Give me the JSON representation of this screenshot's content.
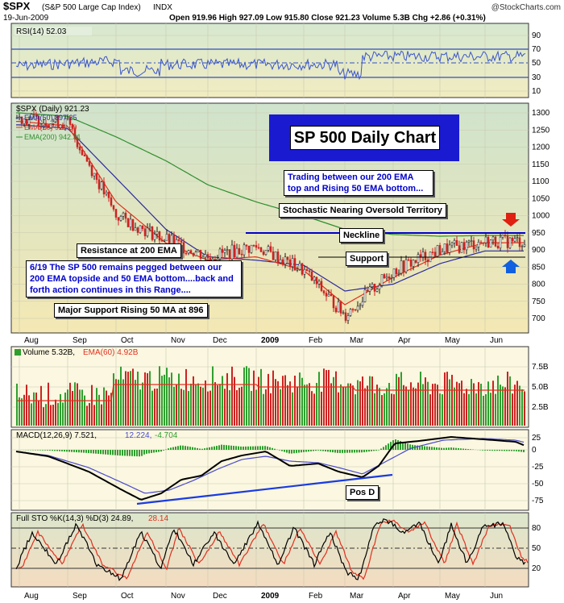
{
  "header": {
    "symbol": "$SPX",
    "name": "(S&P 500 Large Cap Index)",
    "exchange": "INDX",
    "date": "19-Jun-2009",
    "quote": "Open 919.96  High 927.09  Low 915.80  Close 921.23  Volume 5.3B  Chg +2.86 (+0.31%)",
    "watermark": "@StockCharts.com",
    "up_arrow": "▲"
  },
  "panels": {
    "rsi": {
      "label": "RSI(14) 52.03",
      "ticks": [
        "90",
        "70",
        "50",
        "30",
        "10"
      ],
      "color": "#4a5fd0"
    },
    "price": {
      "label": "$SPX (Daily) 921.23",
      "ema50": "EMA(50) 897.25",
      "ema20": "EMA(20) 921.69",
      "ema200": "EMA(200) 942.31",
      "ticks": [
        "1300",
        "1250",
        "1200",
        "1150",
        "1100",
        "1050",
        "1000",
        "950",
        "900",
        "850",
        "800",
        "750",
        "700"
      ]
    },
    "volume": {
      "label1": "Volume 5.32B,",
      "label2": "EMA(60) 4.92B",
      "ticks": [
        "7.5B",
        "5.0B",
        "2.5B"
      ]
    },
    "macd": {
      "label": "MACD(12,26,9) 7.521,",
      "v1": "12.224,",
      "v2": "-4.704",
      "ticks": [
        "25",
        "0",
        "-25",
        "-50",
        "-75"
      ]
    },
    "sto": {
      "label": "Full STO %K(14,3) %D(3) 24.89,",
      "v": "28.14",
      "ticks": [
        "80",
        "50",
        "20"
      ]
    }
  },
  "x_axis": [
    "Aug",
    "Sep",
    "Oct",
    "Nov",
    "Dec",
    "2009",
    "Feb",
    "Mar",
    "Apr",
    "May",
    "Jun"
  ],
  "annotations": {
    "title": "SP 500 Daily Chart",
    "trading": "Trading between our 200 EMA top and Rising 50 EMA bottom...",
    "stochastic": "Stochastic Nearing Oversold Territory",
    "neckline": "Neckline",
    "support": "Support",
    "resistance": "Resistance at 200 EMA",
    "note619": "6/19  The SP 500 remains pegged between our 200 EMA topside and 50 EMA bottom....back and forth action continues in this Range....",
    "major": "Major Support Rising 50 MA at 896",
    "posd": "Pos D"
  },
  "colors": {
    "panel_bg": "#fbf7e0",
    "price_bg_top": "#d3e6cf",
    "price_bg_bottom": "#f2e6b0",
    "up": "#2f9e2f",
    "down": "#cc2222",
    "ema50": "#2b2b9e",
    "ema20": "#e03020",
    "ema200": "#2f8f2f"
  },
  "chart_data": {
    "type": "line",
    "title": "",
    "x": [
      "Aug",
      "Sep",
      "Oct",
      "Nov",
      "Dec",
      "2009",
      "Feb",
      "Mar",
      "Apr",
      "May",
      "Jun"
    ],
    "series": [
      {
        "name": "$SPX",
        "values": [
          1285,
          1270,
          1000,
          930,
          880,
          910,
          840,
          710,
          840,
          900,
          925
        ]
      },
      {
        "name": "EMA(50)",
        "values": [
          1265,
          1255,
          1110,
          960,
          880,
          870,
          855,
          780,
          800,
          860,
          897
        ]
      },
      {
        "name": "EMA(20)",
        "values": [
          1275,
          1262,
          1040,
          920,
          870,
          880,
          840,
          740,
          820,
          885,
          921
        ]
      },
      {
        "name": "EMA(200)",
        "values": [
          1300,
          1290,
          1230,
          1160,
          1090,
          1040,
          1000,
          960,
          945,
          940,
          942
        ]
      }
    ],
    "ylim": [
      680,
      1320
    ],
    "levels": {
      "neckline": 950,
      "support": 875
    }
  }
}
